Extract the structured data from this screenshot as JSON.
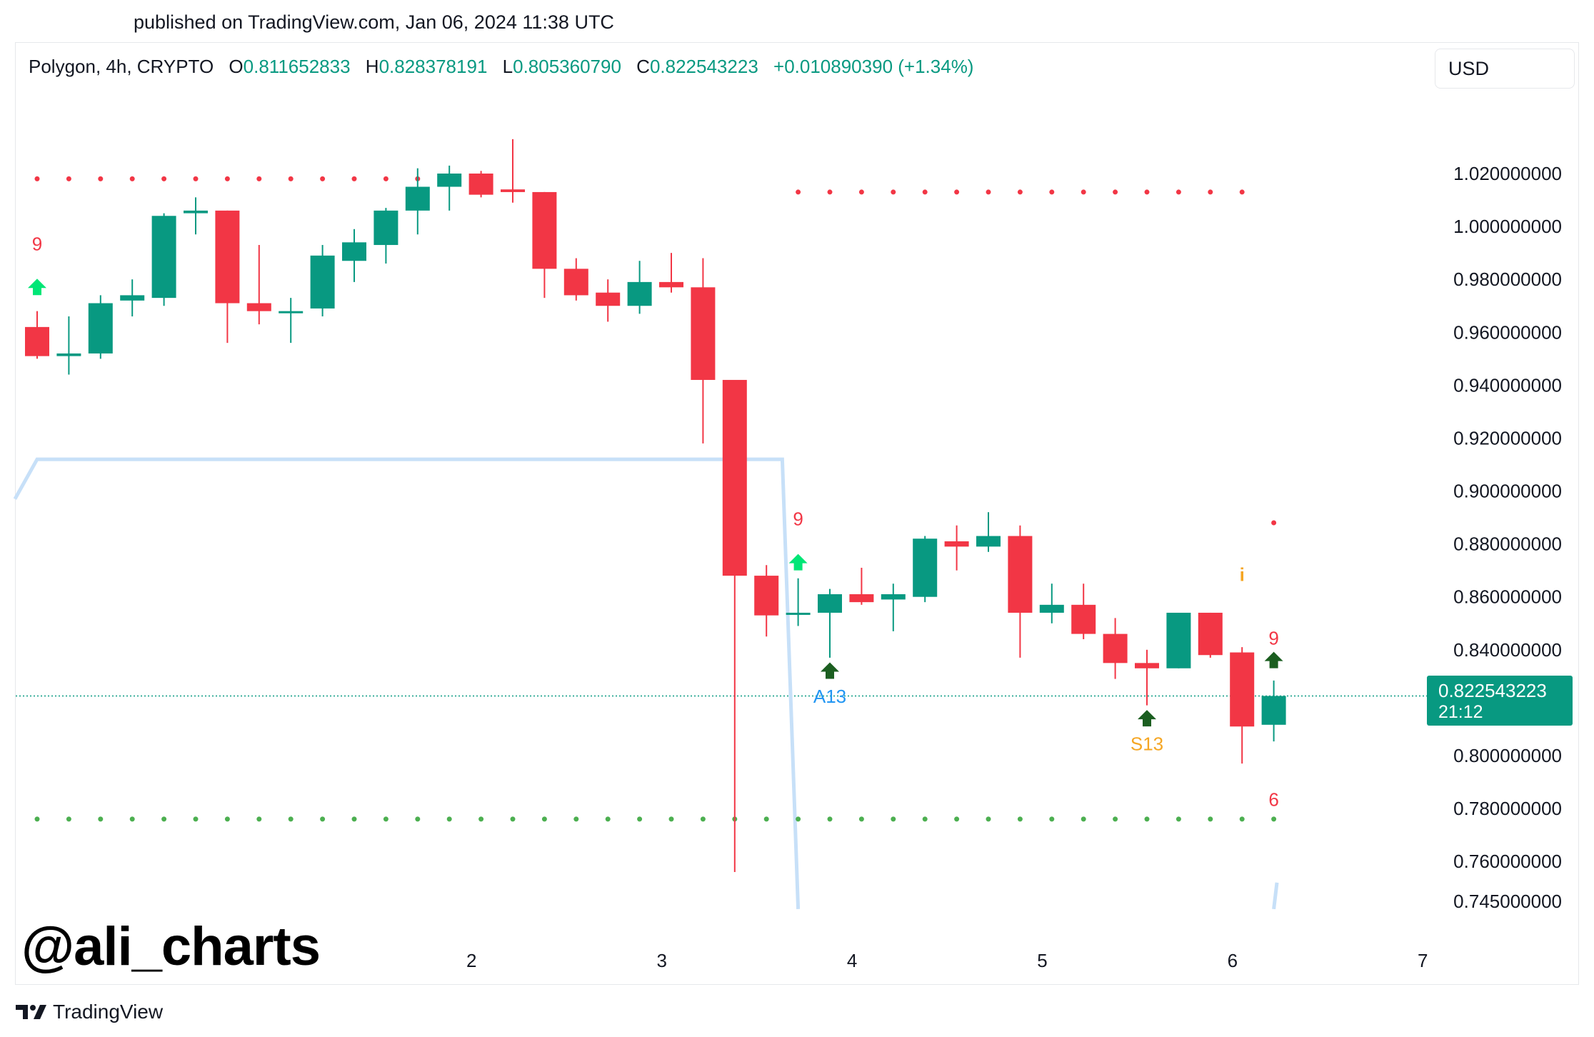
{
  "header": {
    "published": "published on TradingView.com, Jan 06, 2024 11:38 UTC"
  },
  "legend": {
    "symbol": "Polygon, 4h, CRYPTO",
    "open_label": "O",
    "open": "0.811652833",
    "high_label": "H",
    "high": "0.828378191",
    "low_label": "L",
    "low": "0.805360790",
    "close_label": "C",
    "close": "0.822543223",
    "change": "+0.010890390 (+1.34%)"
  },
  "currency_button": "USD",
  "last_price": {
    "price": "0.822543223",
    "countdown": "21:12"
  },
  "watermark": "@ali_charts",
  "brand": "TradingView",
  "colors": {
    "up": "#089981",
    "down": "#f23645",
    "line": "#c7e0f8",
    "dots_red": "#f23645",
    "dots_green": "#4caf50"
  },
  "chart_data": {
    "type": "candlestick",
    "y_axis": {
      "ticks": [
        1.02,
        1.0,
        0.98,
        0.96,
        0.94,
        0.92,
        0.9,
        0.88,
        0.86,
        0.84,
        0.8,
        0.78,
        0.76,
        0.745
      ],
      "tick_labels": [
        "1.020000000",
        "1.000000000",
        "0.980000000",
        "0.960000000",
        "0.940000000",
        "0.920000000",
        "0.900000000",
        "0.880000000",
        "0.860000000",
        "0.840000000",
        "0.800000000",
        "0.780000000",
        "0.760000000",
        "0.745000000"
      ],
      "range": [
        0.74,
        1.04
      ]
    },
    "x_axis": {
      "ticks": [
        {
          "label": "2",
          "bar": 13.7
        },
        {
          "label": "3",
          "bar": 19.7
        },
        {
          "label": "4",
          "bar": 25.7
        },
        {
          "label": "5",
          "bar": 31.7
        },
        {
          "label": "6",
          "bar": 37.7
        },
        {
          "label": "7",
          "bar": 43.7
        }
      ]
    },
    "candles": [
      {
        "o": 0.962,
        "h": 0.968,
        "l": 0.95,
        "c": 0.951
      },
      {
        "o": 0.951,
        "h": 0.966,
        "l": 0.944,
        "c": 0.952
      },
      {
        "o": 0.952,
        "h": 0.974,
        "l": 0.95,
        "c": 0.971
      },
      {
        "o": 0.972,
        "h": 0.98,
        "l": 0.966,
        "c": 0.974
      },
      {
        "o": 0.973,
        "h": 1.005,
        "l": 0.97,
        "c": 1.004
      },
      {
        "o": 1.005,
        "h": 1.011,
        "l": 0.997,
        "c": 1.006
      },
      {
        "o": 1.006,
        "h": 1.006,
        "l": 0.956,
        "c": 0.971
      },
      {
        "o": 0.971,
        "h": 0.993,
        "l": 0.963,
        "c": 0.968
      },
      {
        "o": 0.968,
        "h": 0.973,
        "l": 0.956,
        "c": 0.968
      },
      {
        "o": 0.969,
        "h": 0.993,
        "l": 0.966,
        "c": 0.989
      },
      {
        "o": 0.987,
        "h": 0.999,
        "l": 0.979,
        "c": 0.994
      },
      {
        "o": 0.993,
        "h": 1.007,
        "l": 0.986,
        "c": 1.006
      },
      {
        "o": 1.006,
        "h": 1.022,
        "l": 0.997,
        "c": 1.015
      },
      {
        "o": 1.015,
        "h": 1.023,
        "l": 1.006,
        "c": 1.02
      },
      {
        "o": 1.02,
        "h": 1.021,
        "l": 1.011,
        "c": 1.012
      },
      {
        "o": 1.014,
        "h": 1.033,
        "l": 1.009,
        "c": 1.013
      },
      {
        "o": 1.013,
        "h": 1.013,
        "l": 0.973,
        "c": 0.984
      },
      {
        "o": 0.984,
        "h": 0.988,
        "l": 0.972,
        "c": 0.974
      },
      {
        "o": 0.975,
        "h": 0.98,
        "l": 0.964,
        "c": 0.97
      },
      {
        "o": 0.97,
        "h": 0.987,
        "l": 0.967,
        "c": 0.979
      },
      {
        "o": 0.979,
        "h": 0.99,
        "l": 0.975,
        "c": 0.977
      },
      {
        "o": 0.977,
        "h": 0.988,
        "l": 0.918,
        "c": 0.942
      },
      {
        "o": 0.942,
        "h": 0.942,
        "l": 0.756,
        "c": 0.868
      },
      {
        "o": 0.868,
        "h": 0.872,
        "l": 0.845,
        "c": 0.853
      },
      {
        "o": 0.854,
        "h": 0.867,
        "l": 0.849,
        "c": 0.854
      },
      {
        "o": 0.854,
        "h": 0.863,
        "l": 0.837,
        "c": 0.861
      },
      {
        "o": 0.861,
        "h": 0.871,
        "l": 0.857,
        "c": 0.858
      },
      {
        "o": 0.859,
        "h": 0.865,
        "l": 0.847,
        "c": 0.861
      },
      {
        "o": 0.86,
        "h": 0.883,
        "l": 0.858,
        "c": 0.882
      },
      {
        "o": 0.881,
        "h": 0.887,
        "l": 0.87,
        "c": 0.879
      },
      {
        "o": 0.879,
        "h": 0.892,
        "l": 0.877,
        "c": 0.883
      },
      {
        "o": 0.883,
        "h": 0.887,
        "l": 0.837,
        "c": 0.854
      },
      {
        "o": 0.854,
        "h": 0.865,
        "l": 0.85,
        "c": 0.857
      },
      {
        "o": 0.857,
        "h": 0.865,
        "l": 0.844,
        "c": 0.846
      },
      {
        "o": 0.846,
        "h": 0.852,
        "l": 0.829,
        "c": 0.835
      },
      {
        "o": 0.835,
        "h": 0.84,
        "l": 0.819,
        "c": 0.833
      },
      {
        "o": 0.833,
        "h": 0.854,
        "l": 0.833,
        "c": 0.854
      },
      {
        "o": 0.854,
        "h": 0.854,
        "l": 0.837,
        "c": 0.838
      },
      {
        "o": 0.839,
        "h": 0.841,
        "l": 0.797,
        "c": 0.811
      },
      {
        "o": 0.811652833,
        "h": 0.828378191,
        "l": 0.80536079,
        "c": 0.822543223
      }
    ],
    "blue_line": [
      {
        "bar": -0.7,
        "v": 0.897
      },
      {
        "bar": 0,
        "v": 0.912
      },
      {
        "bar": 23.5,
        "v": 0.912
      },
      {
        "bar": 24.0,
        "v": 0.742
      }
    ],
    "blue_line_tail": [
      {
        "bar": 39.0,
        "v": 0.742
      },
      {
        "bar": 39.1,
        "v": 0.752
      }
    ],
    "red_dots_1": {
      "from": 0,
      "to": 12,
      "v": 1.018
    },
    "red_dots_2": {
      "from": 24,
      "to": 38,
      "v": 1.013
    },
    "green_dots": {
      "from": 0,
      "to": 39,
      "v": 0.776
    },
    "last_price_line": 0.822543223,
    "annotations": [
      {
        "bar": 0,
        "label": "9",
        "color": "#f23645",
        "arrow": "up",
        "arrow_color": "#00e676",
        "v_label": 0.991,
        "v_arrow": 0.977
      },
      {
        "bar": 24,
        "label": "9",
        "color": "#f23645",
        "arrow": "up",
        "arrow_color": "#00e676",
        "v_label": 0.887,
        "v_arrow": 0.873
      },
      {
        "bar": 25,
        "label": "A13",
        "color": "#2196f3",
        "arrow": "up",
        "arrow_color": "#1b5e20",
        "v_label": 0.82,
        "v_arrow": 0.832
      },
      {
        "bar": 35,
        "label": "S13",
        "color": "#f5a623",
        "arrow": "up",
        "arrow_color": "#1b5e20",
        "v_label": 0.802,
        "v_arrow": 0.814
      },
      {
        "bar": 39,
        "label": "9",
        "color": "#f23645",
        "arrow": "up",
        "arrow_color": "#1b5e20",
        "v_label": 0.842,
        "v_arrow": 0.836
      },
      {
        "bar": 39,
        "label": "6",
        "color": "#f23645",
        "arrow": "",
        "arrow_color": "",
        "v_label": 0.781,
        "v_arrow": 0
      }
    ],
    "info_marker": {
      "bar": 38,
      "label": "i",
      "color": "#f5a623",
      "v": 0.866
    },
    "extra_red_dot": {
      "bar": 39,
      "v": 0.888
    }
  }
}
